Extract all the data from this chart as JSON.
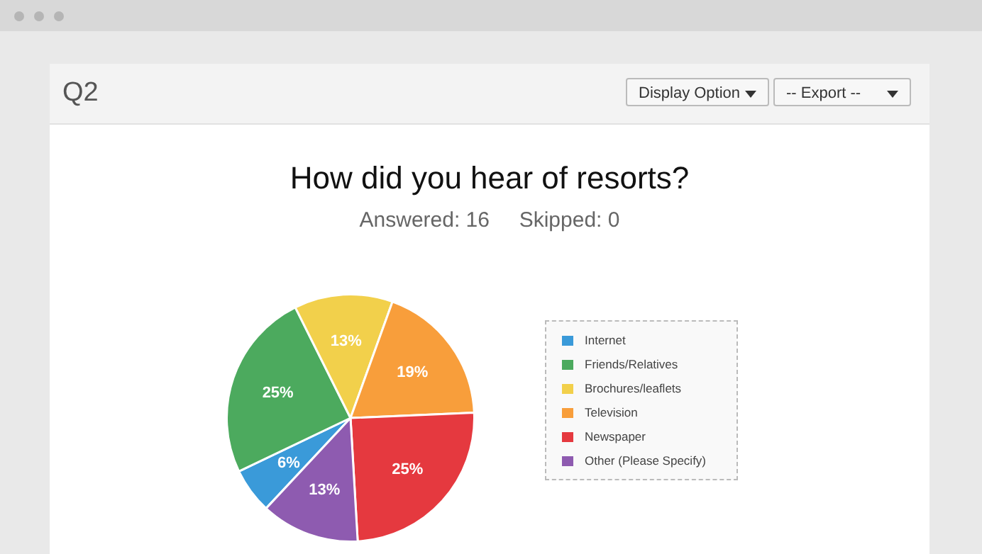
{
  "chart_data": {
    "type": "pie",
    "title": "How did you hear of resorts?",
    "subtitle": "Answered: 16     Skipped: 0",
    "annotations": [
      "Q2",
      "Display Option",
      "-- Export --"
    ],
    "categories": [
      "Internet",
      "Friends/Relatives",
      "Brochures/leaflets",
      "Television",
      "Newspaper",
      "Other (Please Specify)"
    ],
    "values": [
      6,
      25,
      13,
      19,
      25,
      13
    ],
    "colors": [
      "#3a9ad9",
      "#4caa5e",
      "#f2d04b",
      "#f89e3b",
      "#e5393f",
      "#8e5bb0"
    ],
    "value_labels": [
      "6%",
      "25%",
      "13%",
      "19%",
      "25%",
      "13%"
    ],
    "legend": "right"
  }
}
